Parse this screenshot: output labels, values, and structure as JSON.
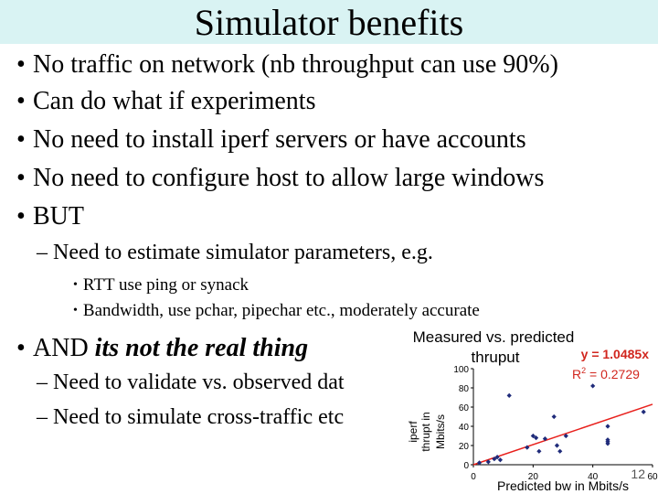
{
  "slide": {
    "title": "Simulator benefits",
    "bullets": [
      "No traffic on network (nb throughput can use 90%)",
      "Can do what if experiments",
      "No need to install iperf servers or have accounts",
      "No need to configure host to allow large windows",
      "BUT"
    ],
    "but_sub": "– Need to estimate simulator parameters, e.g.",
    "but_subsub": [
      "RTT use ping or synack",
      "Bandwidth, use pchar, pipechar etc., moderately accurate"
    ],
    "and_prefix": "AND ",
    "and_emph": "its not the real thing",
    "and_sub": [
      "– Need to validate vs. observed dat",
      "– Need to simulate cross-traffic etc"
    ],
    "page_number": "12"
  },
  "chart_data": {
    "type": "scatter",
    "title": "Measured vs. predicted thruput",
    "xlabel": "Predicted bw in Mbits/s",
    "ylabel": "iperf thrupt in Mbits/s",
    "xticks": [
      "0",
      "20",
      "40",
      "60"
    ],
    "yticks": [
      "0",
      "20",
      "40",
      "60",
      "80",
      "100"
    ],
    "xlim": [
      0,
      60
    ],
    "ylim": [
      0,
      100
    ],
    "trend_equation": "y = 1.0485x",
    "r2_prefix": "R",
    "r2_suffix": " = 0.2729",
    "r2_exponent": "2",
    "trend_slope": 1.0485,
    "points": [
      {
        "x": 2,
        "y": 2
      },
      {
        "x": 5,
        "y": 3
      },
      {
        "x": 7,
        "y": 6
      },
      {
        "x": 8,
        "y": 8
      },
      {
        "x": 9,
        "y": 5
      },
      {
        "x": 12,
        "y": 72
      },
      {
        "x": 18,
        "y": 18
      },
      {
        "x": 20,
        "y": 30
      },
      {
        "x": 21,
        "y": 28
      },
      {
        "x": 22,
        "y": 14
      },
      {
        "x": 24,
        "y": 27
      },
      {
        "x": 27,
        "y": 50
      },
      {
        "x": 28,
        "y": 20
      },
      {
        "x": 29,
        "y": 14
      },
      {
        "x": 31,
        "y": 30
      },
      {
        "x": 45,
        "y": 40
      },
      {
        "x": 45,
        "y": 26
      },
      {
        "x": 45,
        "y": 24
      },
      {
        "x": 45,
        "y": 22
      },
      {
        "x": 57,
        "y": 55
      },
      {
        "x": 40,
        "y": 82
      }
    ],
    "colors": {
      "points": "#1f2b7a",
      "trend": "#e8201c",
      "annotation": "#d1261e",
      "text": "#000000"
    }
  }
}
